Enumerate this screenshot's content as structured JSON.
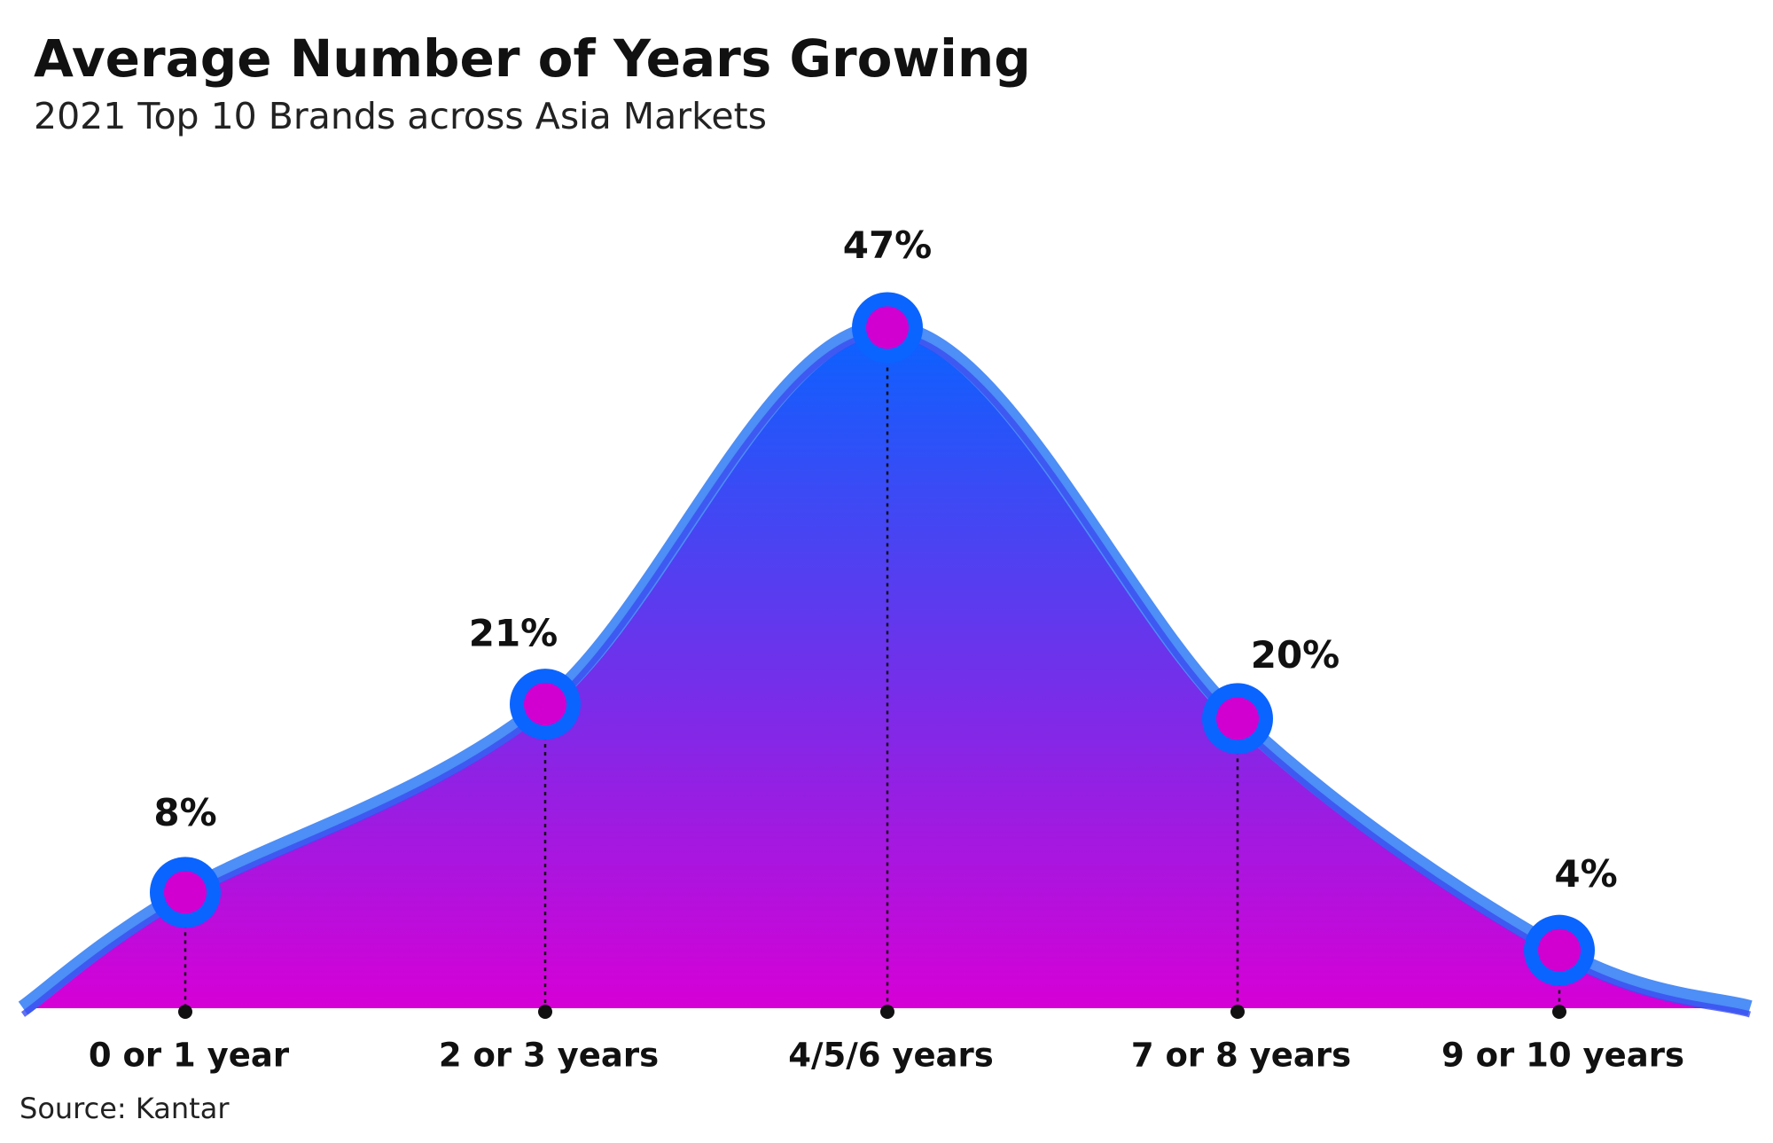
{
  "chart_data": {
    "type": "area",
    "title": "Average Number of Years Growing",
    "subtitle": "2021 Top 10 Brands across Asia Markets",
    "source": "Source: Kantar",
    "categories": [
      "0 or 1 year",
      "2 or 3 years",
      "4/5/6 years",
      "7 or 8 years",
      "9 or 10 years"
    ],
    "values": [
      8,
      21,
      47,
      20,
      4
    ],
    "value_labels": [
      "8%",
      "21%",
      "47%",
      "20%",
      "4%"
    ],
    "colors": {
      "top": "#0a62ff",
      "bottom": "#d600d6",
      "outline": "#4d8ef7",
      "marker": "#0a64ff",
      "marker_center": "#d100d1"
    }
  }
}
